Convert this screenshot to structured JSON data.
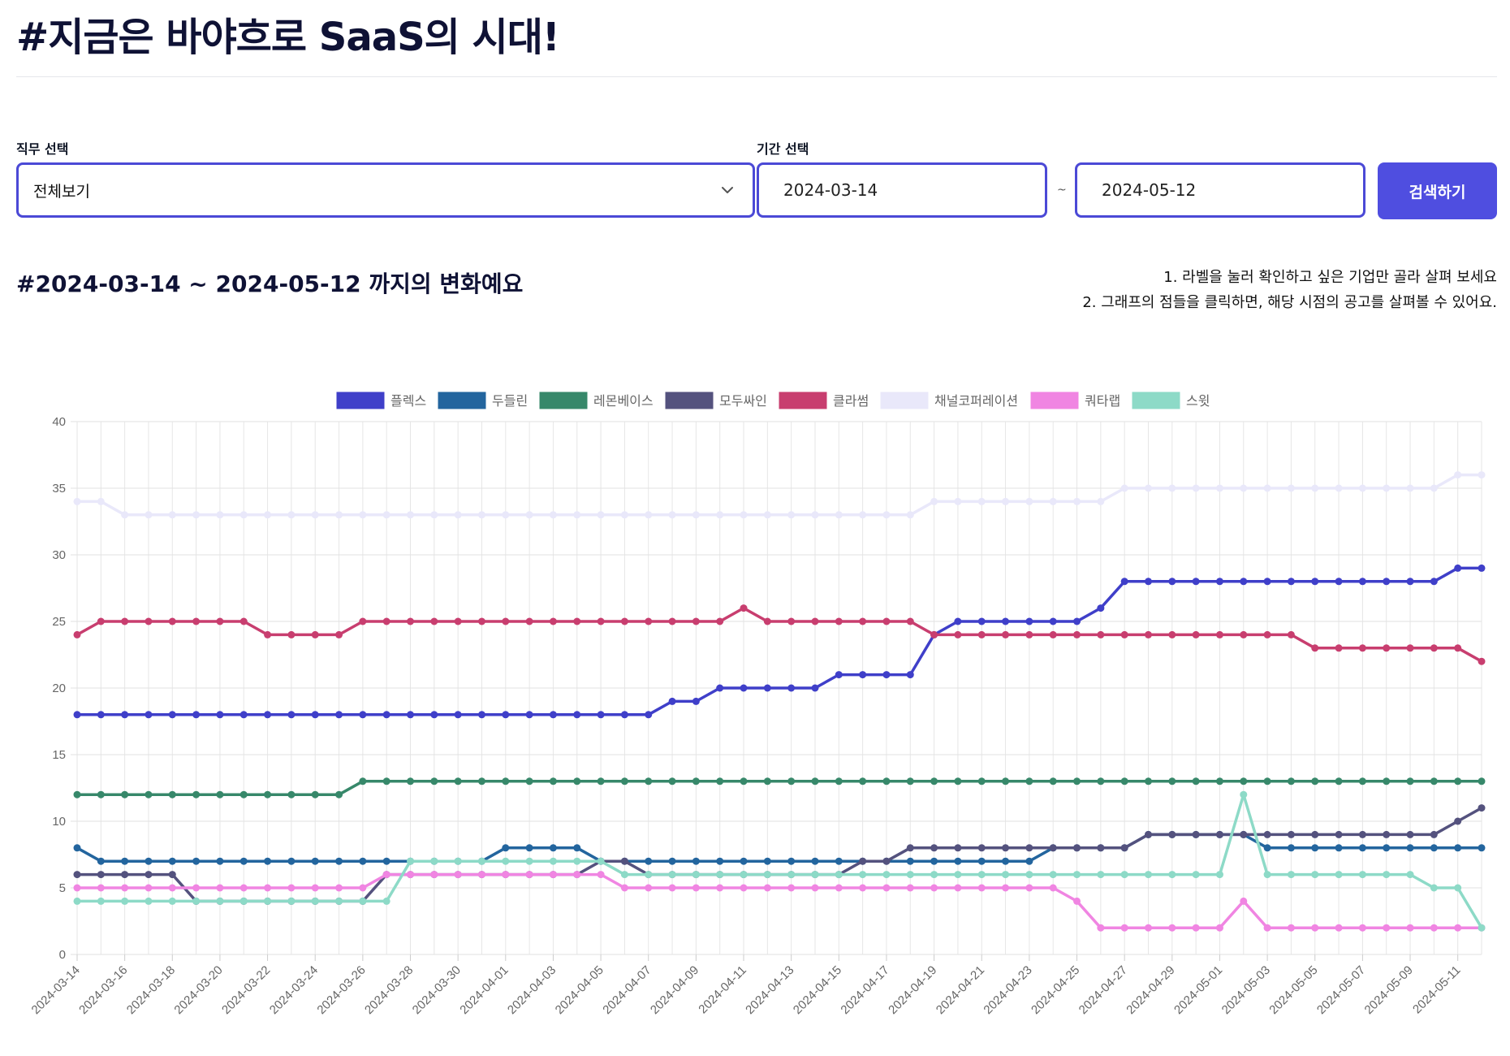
{
  "header": {
    "title": "#지금은 바야흐로 SaaS의 시대!"
  },
  "filters": {
    "job_label": "직무 선택",
    "job_value": "전체보기",
    "period_label": "기간 선택",
    "date_from": "2024-03-14",
    "date_to": "2024-05-12",
    "tilde": "~",
    "search_label": "검색하기"
  },
  "section": {
    "title": "#2024-03-14 ~ 2024-05-12 까지의 변화예요",
    "tip1": "1. 라벨을 눌러 확인하고 싶은 기업만 골라 살펴 보세요",
    "tip2": "2. 그래프의 점들을 클릭하면, 해당 시점의 공고를 살펴볼 수 있어요."
  },
  "chart_data": {
    "type": "line",
    "x_start": "2024-03-14",
    "x_end": "2024-05-12",
    "x_tick_labels": [
      "2024-03-14",
      "2024-03-16",
      "2024-03-18",
      "2024-03-20",
      "2024-03-22",
      "2024-03-24",
      "2024-03-26",
      "2024-03-28",
      "2024-03-30",
      "2024-04-01",
      "2024-04-03",
      "2024-04-05",
      "2024-04-07",
      "2024-04-09",
      "2024-04-11",
      "2024-04-13",
      "2024-04-15",
      "2024-04-17",
      "2024-04-19",
      "2024-04-21",
      "2024-04-23",
      "2024-04-25",
      "2024-04-27",
      "2024-04-29",
      "2024-05-01",
      "2024-05-03",
      "2024-05-05",
      "2024-05-07",
      "2024-05-09",
      "2024-05-11"
    ],
    "ylim": [
      0,
      40
    ],
    "y_ticks": [
      0,
      5,
      10,
      15,
      20,
      25,
      30,
      35,
      40
    ],
    "grid": true,
    "legend_position": "top",
    "series": [
      {
        "name": "플렉스",
        "color": "#3f3fc9",
        "values": [
          18,
          18,
          18,
          18,
          18,
          18,
          18,
          18,
          18,
          18,
          18,
          18,
          18,
          18,
          18,
          18,
          18,
          18,
          18,
          18,
          18,
          18,
          18,
          18,
          18,
          19,
          19,
          20,
          20,
          20,
          20,
          20,
          21,
          21,
          21,
          21,
          24,
          25,
          25,
          25,
          25,
          25,
          25,
          26,
          28,
          28,
          28,
          28,
          28,
          28,
          28,
          28,
          28,
          28,
          28,
          28,
          28,
          28,
          29,
          29
        ]
      },
      {
        "name": "두들린",
        "color": "#23659e",
        "values": [
          8,
          7,
          7,
          7,
          7,
          7,
          7,
          7,
          7,
          7,
          7,
          7,
          7,
          7,
          7,
          7,
          7,
          7,
          8,
          8,
          8,
          8,
          7,
          7,
          7,
          7,
          7,
          7,
          7,
          7,
          7,
          7,
          7,
          7,
          7,
          7,
          7,
          7,
          7,
          7,
          7,
          8,
          8,
          8,
          8,
          9,
          9,
          9,
          9,
          9,
          8,
          8,
          8,
          8,
          8,
          8,
          8,
          8,
          8,
          8
        ]
      },
      {
        "name": "레몬베이스",
        "color": "#37886a",
        "values": [
          12,
          12,
          12,
          12,
          12,
          12,
          12,
          12,
          12,
          12,
          12,
          12,
          13,
          13,
          13,
          13,
          13,
          13,
          13,
          13,
          13,
          13,
          13,
          13,
          13,
          13,
          13,
          13,
          13,
          13,
          13,
          13,
          13,
          13,
          13,
          13,
          13,
          13,
          13,
          13,
          13,
          13,
          13,
          13,
          13,
          13,
          13,
          13,
          13,
          13,
          13,
          13,
          13,
          13,
          13,
          13,
          13,
          13,
          13,
          13
        ]
      },
      {
        "name": "모두싸인",
        "color": "#54527e",
        "values": [
          6,
          6,
          6,
          6,
          6,
          4,
          4,
          4,
          4,
          4,
          4,
          4,
          4,
          6,
          6,
          6,
          6,
          6,
          6,
          6,
          6,
          6,
          7,
          7,
          6,
          6,
          6,
          6,
          6,
          6,
          6,
          6,
          6,
          7,
          7,
          8,
          8,
          8,
          8,
          8,
          8,
          8,
          8,
          8,
          8,
          9,
          9,
          9,
          9,
          9,
          9,
          9,
          9,
          9,
          9,
          9,
          9,
          9,
          10,
          11
        ]
      },
      {
        "name": "클라썸",
        "color": "#c83e6f",
        "values": [
          24,
          25,
          25,
          25,
          25,
          25,
          25,
          25,
          24,
          24,
          24,
          24,
          25,
          25,
          25,
          25,
          25,
          25,
          25,
          25,
          25,
          25,
          25,
          25,
          25,
          25,
          25,
          25,
          26,
          25,
          25,
          25,
          25,
          25,
          25,
          25,
          24,
          24,
          24,
          24,
          24,
          24,
          24,
          24,
          24,
          24,
          24,
          24,
          24,
          24,
          24,
          24,
          23,
          23,
          23,
          23,
          23,
          23,
          23,
          22
        ]
      },
      {
        "name": "채널코퍼레이션",
        "color": "#e9e8fa",
        "values": [
          34,
          34,
          33,
          33,
          33,
          33,
          33,
          33,
          33,
          33,
          33,
          33,
          33,
          33,
          33,
          33,
          33,
          33,
          33,
          33,
          33,
          33,
          33,
          33,
          33,
          33,
          33,
          33,
          33,
          33,
          33,
          33,
          33,
          33,
          33,
          33,
          34,
          34,
          34,
          34,
          34,
          34,
          34,
          34,
          35,
          35,
          35,
          35,
          35,
          35,
          35,
          35,
          35,
          35,
          35,
          35,
          35,
          35,
          36,
          36
        ]
      },
      {
        "name": "쿼타랩",
        "color": "#f085e2",
        "values": [
          5,
          5,
          5,
          5,
          5,
          5,
          5,
          5,
          5,
          5,
          5,
          5,
          5,
          6,
          6,
          6,
          6,
          6,
          6,
          6,
          6,
          6,
          6,
          5,
          5,
          5,
          5,
          5,
          5,
          5,
          5,
          5,
          5,
          5,
          5,
          5,
          5,
          5,
          5,
          5,
          5,
          5,
          4,
          2,
          2,
          2,
          2,
          2,
          2,
          4,
          2,
          2,
          2,
          2,
          2,
          2,
          2,
          2,
          2,
          2
        ]
      },
      {
        "name": "스윗",
        "color": "#8ddac7",
        "values": [
          4,
          4,
          4,
          4,
          4,
          4,
          4,
          4,
          4,
          4,
          4,
          4,
          4,
          4,
          7,
          7,
          7,
          7,
          7,
          7,
          7,
          7,
          7,
          6,
          6,
          6,
          6,
          6,
          6,
          6,
          6,
          6,
          6,
          6,
          6,
          6,
          6,
          6,
          6,
          6,
          6,
          6,
          6,
          6,
          6,
          6,
          6,
          6,
          6,
          12,
          6,
          6,
          6,
          6,
          6,
          6,
          6,
          5,
          5,
          2
        ]
      }
    ]
  }
}
